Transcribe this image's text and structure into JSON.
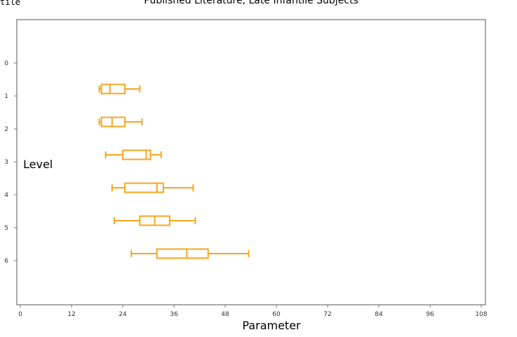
{
  "corner_text": "tile",
  "colors": {
    "box": "#f5a623",
    "frame": "#555555",
    "tick": "#777777"
  },
  "chart_data": {
    "type": "boxplot",
    "orientation": "horizontal",
    "title": "Published Literature, Late Infantile Subjects",
    "xlabel": "Parameter",
    "ylabel": "Level",
    "xlim": [
      0,
      108
    ],
    "xticks": [
      0,
      12,
      24,
      36,
      48,
      60,
      72,
      84,
      96,
      108
    ],
    "yticks": [
      0,
      1,
      2,
      3,
      4,
      5,
      6
    ],
    "grid": false,
    "series": [
      {
        "level": 1,
        "min": 18.5,
        "q1": 19.0,
        "median": 21.0,
        "q3": 24.5,
        "max": 28.0
      },
      {
        "level": 2,
        "min": 18.5,
        "q1": 19.0,
        "median": 21.5,
        "q3": 24.5,
        "max": 28.5
      },
      {
        "level": 3,
        "min": 20.0,
        "q1": 24.0,
        "median": 29.5,
        "q3": 30.5,
        "max": 33.0
      },
      {
        "level": 4,
        "min": 21.5,
        "q1": 24.5,
        "median": 32.0,
        "q3": 33.5,
        "max": 40.5
      },
      {
        "level": 5,
        "min": 22.0,
        "q1": 28.0,
        "median": 31.5,
        "q3": 35.0,
        "max": 41.0
      },
      {
        "level": 6,
        "min": 26.0,
        "q1": 32.0,
        "median": 39.0,
        "q3": 44.0,
        "max": 53.5
      }
    ]
  }
}
